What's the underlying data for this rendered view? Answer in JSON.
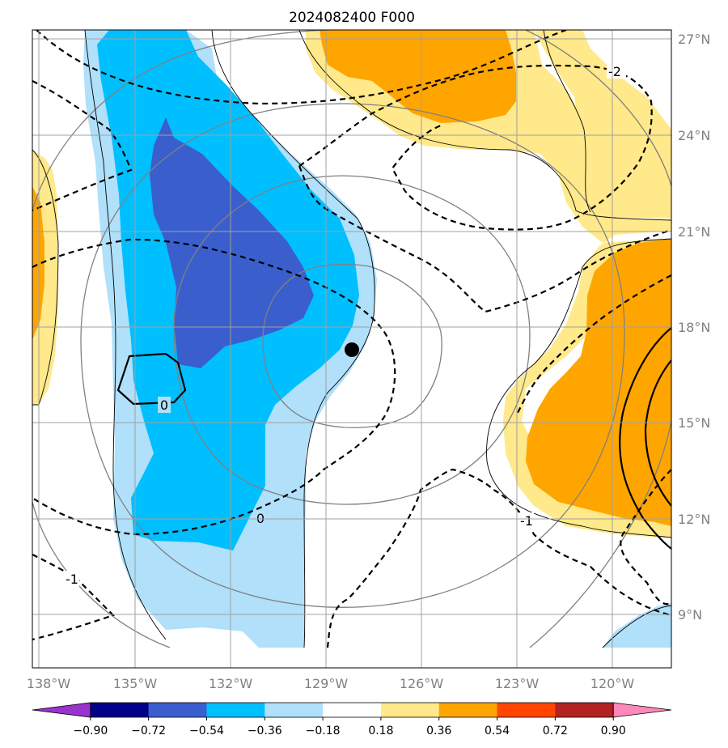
{
  "title": "2024082400 F000",
  "lon_ticks": [
    "138°W",
    "135°W",
    "132°W",
    "129°W",
    "126°W",
    "123°W",
    "120°W"
  ],
  "lat_ticks": [
    "27°N",
    "24°N",
    "21°N",
    "18°N",
    "15°N",
    "12°N",
    "9°N"
  ],
  "colorbar": {
    "colors": [
      "#9933cc",
      "#000088",
      "#3a5fcd",
      "#00bfff",
      "#b0e0fa",
      "#ffffff",
      "#ffe98a",
      "#ffa500",
      "#ff4500",
      "#b22222",
      "#ff88bb"
    ],
    "labels": [
      "−0.90",
      "−0.72",
      "−0.54",
      "−0.36",
      "−0.18",
      "0.18",
      "0.36",
      "0.54",
      "0.72",
      "0.90"
    ]
  },
  "contour_labels": [
    "-2",
    "0",
    "0",
    "-1",
    "-1"
  ],
  "storm_center": {
    "lon": -128.1,
    "lat": 17.2
  }
}
